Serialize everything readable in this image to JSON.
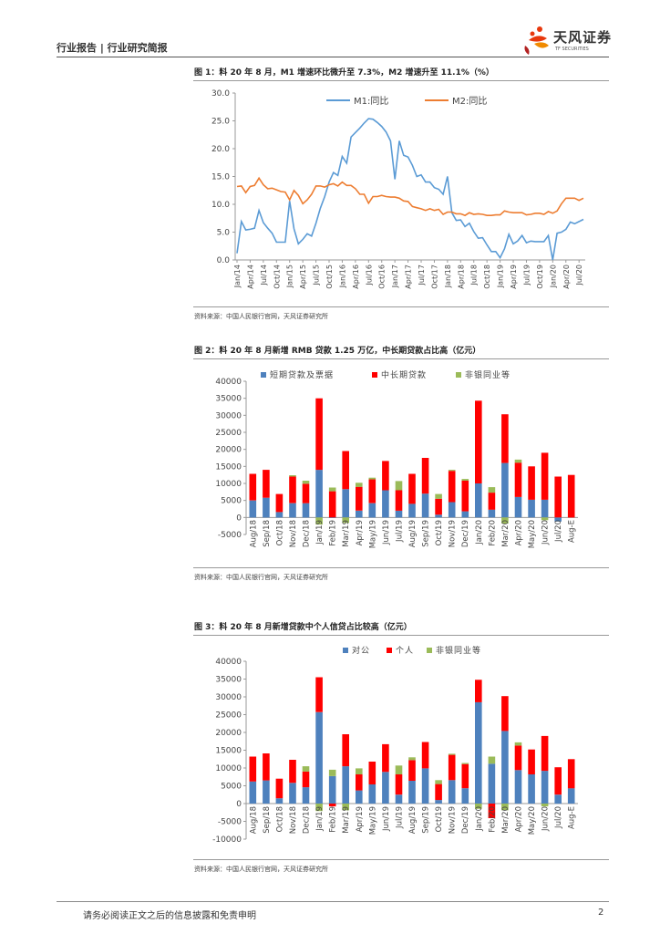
{
  "header": {
    "left": "行业报告 | 行业研究简报"
  },
  "logo": {
    "cn": "天风证券",
    "en": "TF SECURITIES"
  },
  "footer": {
    "text": "请务必阅读正文之后的信息披露和免责申明",
    "page": "2"
  },
  "figures": [
    {
      "title": "图 1：料 20 年 8 月，M1 增速环比微升至 7.3%，M2 增速升至 11.1%（%）",
      "source": "资料来源：中国人民银行官网，天风证券研究所"
    },
    {
      "title": "图 2：料 20 年 8 月新增 RMB 贷款 1.25 万亿，中长期贷款占比高（亿元）",
      "source": "资料来源：中国人民银行官网，天风证券研究所"
    },
    {
      "title": "图 3：料 20 年 8 月新增贷款中个人信贷占比较高（亿元）",
      "source": "资料来源：中国人民银行官网，天风证券研究所"
    }
  ],
  "chart_data": [
    {
      "type": "line",
      "ylim": [
        0,
        30
      ],
      "yticks": [
        "0.0",
        "5.0",
        "10.0",
        "15.0",
        "20.0",
        "25.0",
        "30.0"
      ],
      "xtick_labels": [
        "Jan/14",
        "Apr/14",
        "Jul/14",
        "Oct/14",
        "Jan/15",
        "Apr/15",
        "Jul/15",
        "Oct/15",
        "Jan/16",
        "Apr/16",
        "Jul/16",
        "Oct/16",
        "Jan/17",
        "Apr/17",
        "Jul/17",
        "Oct/17",
        "Jan/18",
        "Apr/18",
        "Jul/18",
        "Oct/18",
        "Jan/19",
        "Apr/19",
        "Jul/19",
        "Oct/19",
        "Jan/20",
        "Apr/20",
        "Jul/20"
      ],
      "legend_position": "top-center",
      "series": [
        {
          "name": "M1:同比",
          "color": "#5b9bd5",
          "values": [
            1.2,
            6.9,
            5.4,
            5.5,
            5.7,
            8.9,
            6.7,
            5.7,
            4.8,
            3.2,
            3.2,
            3.2,
            10.6,
            5.6,
            2.9,
            3.7,
            4.7,
            4.3,
            6.6,
            9.3,
            11.4,
            14.0,
            15.7,
            15.2,
            18.6,
            17.4,
            22.1,
            22.9,
            23.7,
            24.6,
            25.4,
            25.3,
            24.7,
            24.0,
            23.0,
            21.4,
            14.5,
            21.4,
            18.8,
            18.5,
            17.0,
            15.0,
            15.3,
            14.0,
            14.0,
            13.0,
            12.7,
            11.8,
            15.0,
            8.5,
            7.1,
            7.2,
            6.0,
            6.6,
            5.1,
            3.9,
            4.0,
            2.7,
            1.5,
            1.5,
            0.4,
            2.0,
            4.6,
            2.9,
            3.4,
            4.4,
            3.1,
            3.4,
            3.3,
            3.3,
            3.3,
            4.4,
            0.0,
            4.8,
            5.0,
            5.5,
            6.8,
            6.5,
            6.9,
            7.3
          ]
        },
        {
          "name": "M2:同比",
          "color": "#ed7d31",
          "values": [
            13.2,
            13.3,
            12.1,
            13.2,
            13.4,
            14.7,
            13.5,
            12.8,
            12.9,
            12.6,
            12.3,
            12.2,
            10.8,
            12.5,
            11.6,
            10.1,
            10.8,
            11.8,
            13.3,
            13.3,
            13.1,
            13.5,
            13.7,
            13.3,
            14.0,
            13.4,
            13.4,
            12.8,
            11.8,
            11.8,
            10.2,
            11.4,
            11.4,
            11.6,
            11.4,
            11.3,
            11.3,
            11.1,
            10.6,
            10.5,
            9.6,
            9.4,
            9.2,
            8.9,
            9.2,
            8.9,
            9.1,
            8.2,
            8.6,
            8.6,
            8.3,
            8.3,
            8.0,
            8.5,
            8.2,
            8.3,
            8.2,
            8.0,
            8.0,
            8.1,
            8.1,
            8.8,
            8.6,
            8.5,
            8.5,
            8.5,
            8.1,
            8.2,
            8.4,
            8.4,
            8.2,
            8.7,
            8.4,
            8.8,
            10.1,
            11.1,
            11.1,
            11.1,
            10.7,
            11.1
          ]
        }
      ]
    },
    {
      "type": "bar",
      "stacked": true,
      "ylim": [
        -5000,
        40000
      ],
      "yticks": [
        "40000",
        "35000",
        "30000",
        "25000",
        "20000",
        "15000",
        "10000",
        "5000",
        "0",
        "-5000"
      ],
      "legend_position": "top",
      "categories": [
        "Aug/18",
        "Sep/18",
        "Oct/18",
        "Nov/18",
        "Dec/18",
        "Jan/19",
        "Feb/19",
        "Mar/19",
        "Apr/19",
        "May/19",
        "Jun/19",
        "Jul/19",
        "Aug/19",
        "Sep/19",
        "Oct/19",
        "Nov/19",
        "Dec/19",
        "Jan/20",
        "Feb/20",
        "Mar/20",
        "Apr/20",
        "May/20",
        "Jun/20",
        "Jul/20",
        "Aug-E"
      ],
      "series": [
        {
          "name": "短期贷款及票据",
          "color": "#4e81bd",
          "values": [
            5000,
            5800,
            1600,
            4200,
            4200,
            14000,
            -200,
            8300,
            2000,
            4200,
            8000,
            2000,
            4000,
            7000,
            800,
            4500,
            1800,
            10000,
            2300,
            16000,
            6000,
            5200,
            5200,
            -1200,
            0
          ]
        },
        {
          "name": "中长期贷款",
          "color": "#ff0000",
          "values": [
            7800,
            8200,
            5300,
            7800,
            5700,
            21000,
            7700,
            11200,
            7000,
            7000,
            8600,
            6000,
            8800,
            10500,
            4700,
            9200,
            9000,
            24300,
            5000,
            14300,
            10100,
            9800,
            13800,
            12000,
            12500
          ]
        },
        {
          "name": "非银同业等",
          "color": "#9bbb59",
          "values": [
            0,
            0,
            0,
            400,
            900,
            -2100,
            1100,
            -1600,
            1200,
            500,
            0,
            2700,
            0,
            0,
            1400,
            300,
            500,
            0,
            1600,
            -1800,
            900,
            0,
            -800,
            0,
            0
          ]
        }
      ]
    },
    {
      "type": "bar",
      "stacked": true,
      "ylim": [
        -10000,
        40000
      ],
      "yticks": [
        "40000",
        "35000",
        "30000",
        "25000",
        "20000",
        "15000",
        "10000",
        "5000",
        "0",
        "-5000",
        "-10000"
      ],
      "legend_position": "top",
      "categories": [
        "Aug/18",
        "Sep/18",
        "Oct/18",
        "Nov/18",
        "Dec/18",
        "Jan/19",
        "Feb/19",
        "Mar/19",
        "Apr/19",
        "May/19",
        "Jun/19",
        "Jul/19",
        "Aug/19",
        "Sep/19",
        "Oct/19",
        "Nov/19",
        "Dec/19",
        "Jan/20",
        "Feb/20",
        "Mar/20",
        "Apr/20",
        "May/20",
        "Jun/20",
        "Jul/20",
        "Aug-E"
      ],
      "series": [
        {
          "name": "对公",
          "color": "#4e81bd",
          "values": [
            6200,
            6500,
            1500,
            5800,
            4600,
            25700,
            7700,
            10500,
            3700,
            5400,
            8900,
            2500,
            6400,
            9900,
            1000,
            6600,
            4300,
            28500,
            11200,
            20400,
            9400,
            8200,
            9200,
            2500,
            4300
          ]
        },
        {
          "name": "个人",
          "color": "#ff0000",
          "values": [
            7000,
            7600,
            5500,
            6500,
            4400,
            9800,
            -800,
            9000,
            4500,
            6400,
            7800,
            5700,
            5800,
            7400,
            4500,
            7100,
            6800,
            6300,
            -4100,
            9800,
            6900,
            7000,
            9800,
            7700,
            8200
          ]
        },
        {
          "name": "非银同业等",
          "color": "#9bbb59",
          "values": [
            0,
            0,
            0,
            0,
            1500,
            -2100,
            1800,
            -1900,
            1700,
            0,
            0,
            2500,
            800,
            0,
            1100,
            300,
            300,
            -1500,
            2000,
            -1900,
            900,
            0,
            -800,
            0,
            0
          ]
        }
      ]
    }
  ]
}
